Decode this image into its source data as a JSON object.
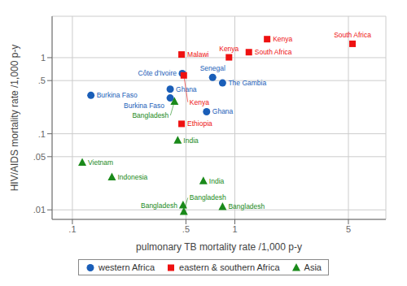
{
  "chart_data": {
    "type": "scatter",
    "xlabel": "pulmonary TB mortality rate /1,000 p-y",
    "ylabel": "HIV/AIDS mortality rate /1,000 p-y",
    "log": true,
    "grid": true,
    "legend": "bottom",
    "xlim": [
      0.075,
      8.5
    ],
    "ylim": [
      0.0075,
      3.5
    ],
    "xticks": [
      {
        "value": 0.1,
        "label": ".1"
      },
      {
        "value": 0.5,
        "label": ".5"
      },
      1,
      5
    ],
    "yticks": [
      {
        "value": 0.01,
        "label": ".01"
      },
      {
        "value": 0.05,
        "label": ".05"
      },
      {
        "value": 0.1,
        "label": ".1"
      },
      {
        "value": 0.5,
        "label": ".5"
      },
      1
    ],
    "series": [
      {
        "name": "western Africa",
        "color": "#1a5eb8",
        "marker": "circle",
        "x": [
          0.13,
          0.4,
          0.4,
          0.475,
          0.67,
          0.73,
          0.84
        ],
        "values": [
          0.32,
          0.295,
          0.385,
          0.62,
          0.195,
          0.55,
          0.465
        ],
        "labels": [
          "Burkina Faso",
          "Burkina Faso",
          "Ghana",
          "Côte d'Ivoire",
          "Ghana",
          "Senegal",
          "The Gambia"
        ]
      },
      {
        "name": "eastern & southern Africa",
        "color": "#ee1111",
        "marker": "square",
        "x": [
          0.47,
          0.485,
          0.47,
          0.92,
          1.22,
          1.58,
          5.3
        ],
        "values": [
          1.1,
          0.585,
          0.135,
          1.01,
          1.18,
          1.75,
          1.52
        ],
        "labels": [
          "Malawi",
          "Kenya",
          "Ethiopia",
          "Kenya",
          "South Africa",
          "Kenya",
          "South Africa"
        ]
      },
      {
        "name": "Asia",
        "color": "#1a8a1a",
        "marker": "triangle",
        "x": [
          0.425,
          0.445,
          0.48,
          0.485,
          0.64,
          0.84,
          0.115,
          0.175
        ],
        "values": [
          0.265,
          0.082,
          0.0115,
          0.0095,
          0.024,
          0.011,
          0.042,
          0.027
        ],
        "labels": [
          "Bangladesh",
          "India",
          "Bangladesh",
          "Bangladesh",
          "India",
          "Bangladesh",
          "Vietnam",
          "Indonesia"
        ]
      }
    ]
  }
}
